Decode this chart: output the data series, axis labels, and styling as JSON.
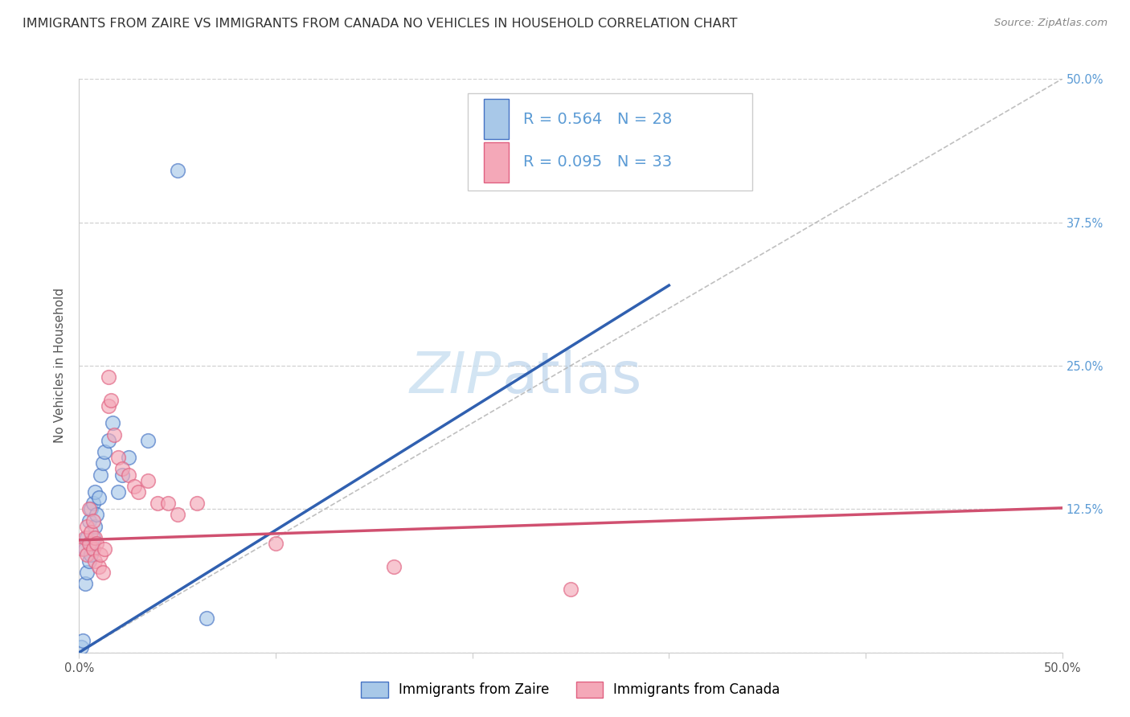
{
  "title": "IMMIGRANTS FROM ZAIRE VS IMMIGRANTS FROM CANADA NO VEHICLES IN HOUSEHOLD CORRELATION CHART",
  "source": "Source: ZipAtlas.com",
  "ylabel": "No Vehicles in Household",
  "watermark_zip": "ZIP",
  "watermark_atlas": "atlas",
  "xlim": [
    0.0,
    0.5
  ],
  "ylim": [
    0.0,
    0.5
  ],
  "zaire_R": 0.564,
  "zaire_N": 28,
  "canada_R": 0.095,
  "canada_N": 33,
  "zaire_fill_color": "#a8c8e8",
  "zaire_edge_color": "#4472c4",
  "canada_fill_color": "#f4a8b8",
  "canada_edge_color": "#e06080",
  "zaire_line_color": "#3060b0",
  "canada_line_color": "#d05070",
  "grid_color": "#cccccc",
  "bg_color": "#ffffff",
  "tick_color": "#5b9bd5",
  "title_fontsize": 11.5,
  "axis_label_fontsize": 11,
  "tick_fontsize": 10.5,
  "legend_fontsize": 14,
  "zaire_points_x": [
    0.001,
    0.002,
    0.003,
    0.003,
    0.004,
    0.004,
    0.005,
    0.005,
    0.006,
    0.006,
    0.006,
    0.007,
    0.007,
    0.008,
    0.008,
    0.009,
    0.01,
    0.011,
    0.012,
    0.013,
    0.015,
    0.017,
    0.02,
    0.022,
    0.025,
    0.035,
    0.05,
    0.065
  ],
  "zaire_points_y": [
    0.005,
    0.01,
    0.06,
    0.09,
    0.07,
    0.1,
    0.08,
    0.115,
    0.085,
    0.095,
    0.125,
    0.1,
    0.13,
    0.11,
    0.14,
    0.12,
    0.135,
    0.155,
    0.165,
    0.175,
    0.185,
    0.2,
    0.14,
    0.155,
    0.17,
    0.185,
    0.42,
    0.03
  ],
  "canada_points_x": [
    0.002,
    0.003,
    0.004,
    0.004,
    0.005,
    0.005,
    0.006,
    0.007,
    0.007,
    0.008,
    0.008,
    0.009,
    0.01,
    0.011,
    0.012,
    0.013,
    0.015,
    0.015,
    0.016,
    0.018,
    0.02,
    0.022,
    0.025,
    0.028,
    0.03,
    0.035,
    0.04,
    0.045,
    0.05,
    0.06,
    0.1,
    0.16,
    0.25
  ],
  "canada_points_y": [
    0.09,
    0.1,
    0.085,
    0.11,
    0.095,
    0.125,
    0.105,
    0.09,
    0.115,
    0.08,
    0.1,
    0.095,
    0.075,
    0.085,
    0.07,
    0.09,
    0.215,
    0.24,
    0.22,
    0.19,
    0.17,
    0.16,
    0.155,
    0.145,
    0.14,
    0.15,
    0.13,
    0.13,
    0.12,
    0.13,
    0.095,
    0.075,
    0.055
  ],
  "zaire_line_x0": 0.0,
  "zaire_line_y0": 0.0,
  "zaire_line_x1": 0.3,
  "zaire_line_y1": 0.32,
  "canada_line_x0": 0.0,
  "canada_line_y0": 0.098,
  "canada_line_x1": 0.5,
  "canada_line_y1": 0.126
}
